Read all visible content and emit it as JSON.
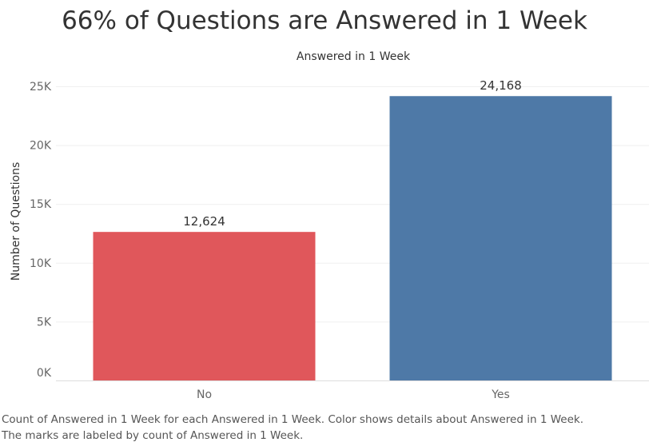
{
  "chart_data": {
    "type": "bar",
    "title": "66% of Questions are Answered in 1 Week",
    "subtitle": "Answered in 1 Week",
    "xlabel": "",
    "ylabel": "Number of Questions",
    "categories": [
      "No",
      "Yes"
    ],
    "values": [
      12624,
      24168
    ],
    "value_labels": [
      "12,624",
      "24,168"
    ],
    "colors": [
      "#e0575b",
      "#4e79a7"
    ],
    "ylim": [
      0,
      25000
    ],
    "yticks": [
      0,
      5000,
      10000,
      15000,
      20000,
      25000
    ],
    "ytick_labels": [
      "0K",
      "5K",
      "10K",
      "15K",
      "20K",
      "25K"
    ],
    "grid": true,
    "legend": "none"
  },
  "caption": {
    "line1": "Count of Answered in 1 Week for each Answered in 1 Week.  Color shows details about Answered in 1 Week.",
    "line2": "The marks are labeled by count of Answered in 1 Week."
  }
}
